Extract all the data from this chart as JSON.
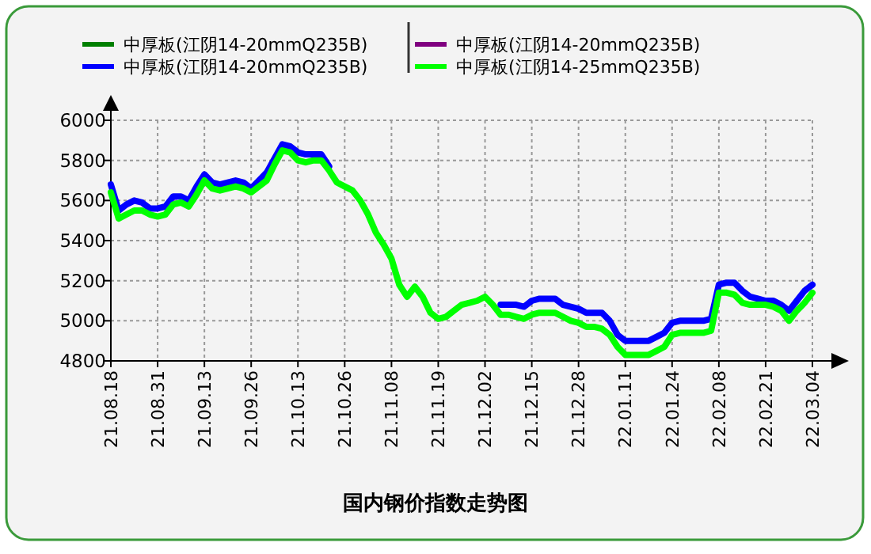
{
  "chart_data": {
    "type": "line",
    "title": "国内钢价指数走势图",
    "categories": [
      "21.08.18",
      null,
      null,
      null,
      null,
      null,
      "21.08.31",
      null,
      null,
      null,
      null,
      null,
      "21.09.13",
      null,
      null,
      null,
      null,
      null,
      "21.09.26",
      null,
      null,
      null,
      null,
      null,
      "21.10.13",
      null,
      null,
      null,
      null,
      null,
      "21.10.26",
      null,
      null,
      null,
      null,
      null,
      "21.11.08",
      null,
      null,
      null,
      null,
      null,
      "21.11.19",
      null,
      null,
      null,
      null,
      null,
      "21.12.02",
      null,
      null,
      null,
      null,
      null,
      "21.12.15",
      null,
      null,
      null,
      null,
      null,
      "21.12.28",
      null,
      null,
      null,
      null,
      null,
      "22.01.11",
      null,
      null,
      null,
      null,
      null,
      "22.01.24",
      null,
      null,
      null,
      null,
      null,
      "22.02.08",
      null,
      null,
      null,
      null,
      null,
      "22.02.21",
      null,
      null,
      null,
      null,
      null,
      "22.03.04"
    ],
    "series": [
      {
        "name": "中厚板(江阴14-20mmQ235B)",
        "color": "#007f00",
        "values": [
          null,
          null,
          null,
          null,
          null,
          null,
          null,
          null,
          null,
          null,
          null,
          null,
          null,
          null,
          null,
          null,
          null,
          null,
          null,
          null,
          null,
          null,
          null,
          null,
          null,
          null,
          null,
          null,
          null,
          null,
          null,
          null,
          null,
          null,
          null,
          null,
          null,
          null,
          null,
          null,
          null,
          null,
          null,
          null,
          null,
          null,
          null,
          null,
          null,
          null,
          null,
          null,
          null,
          null,
          null,
          null,
          null,
          null,
          null,
          null,
          null,
          null,
          null,
          null,
          null,
          null,
          null,
          null,
          null,
          null,
          null,
          null,
          null,
          null,
          null,
          null,
          null,
          null,
          null,
          null,
          null,
          null,
          null,
          null,
          null,
          null,
          null,
          null,
          null,
          null,
          null
        ]
      },
      {
        "name": "中厚板(江阴14-20mmQ235B)",
        "color": "#800080",
        "values": [
          null,
          null,
          null,
          null,
          null,
          null,
          null,
          null,
          null,
          null,
          null,
          null,
          null,
          null,
          null,
          null,
          null,
          null,
          null,
          null,
          null,
          null,
          null,
          null,
          null,
          null,
          null,
          null,
          null,
          null,
          null,
          null,
          null,
          null,
          null,
          null,
          null,
          null,
          null,
          null,
          null,
          null,
          null,
          null,
          null,
          null,
          null,
          null,
          null,
          null,
          null,
          null,
          null,
          null,
          null,
          null,
          null,
          null,
          null,
          null,
          null,
          null,
          null,
          null,
          null,
          null,
          null,
          null,
          null,
          null,
          null,
          null,
          null,
          null,
          null,
          null,
          null,
          null,
          null,
          null,
          null,
          null,
          null,
          null,
          null,
          null,
          null,
          null,
          null,
          null,
          null
        ]
      },
      {
        "name": "中厚板(江阴14-20mmQ235B)",
        "color": "#0000ff",
        "values": [
          5680,
          5550,
          5580,
          5600,
          5590,
          5560,
          5560,
          5570,
          5620,
          5620,
          5600,
          5670,
          5730,
          5690,
          5680,
          5690,
          5700,
          5690,
          5660,
          5700,
          5740,
          5810,
          5880,
          5870,
          5840,
          5830,
          5830,
          5830,
          5770,
          null,
          null,
          null,
          null,
          null,
          null,
          null,
          null,
          null,
          null,
          null,
          null,
          null,
          null,
          null,
          null,
          null,
          null,
          null,
          null,
          null,
          5080,
          5080,
          5080,
          5070,
          5100,
          5110,
          5110,
          5110,
          5080,
          5070,
          5060,
          5040,
          5040,
          5040,
          5000,
          4930,
          4900,
          4900,
          4900,
          4900,
          4920,
          4940,
          4990,
          5000,
          5000,
          5000,
          5000,
          5010,
          5180,
          5190,
          5190,
          5150,
          5120,
          5110,
          5100,
          5100,
          5080,
          5050,
          5100,
          5150,
          5180
        ]
      },
      {
        "name": "中厚板(江阴14-25mmQ235B)",
        "color": "#00ff00",
        "values": [
          5640,
          5510,
          5530,
          5550,
          5550,
          5530,
          5520,
          5530,
          5580,
          5590,
          5570,
          5630,
          5700,
          5660,
          5650,
          5660,
          5670,
          5660,
          5640,
          5670,
          5700,
          5780,
          5850,
          5840,
          5800,
          5790,
          5800,
          5800,
          5750,
          5690,
          5670,
          5650,
          5600,
          5530,
          5440,
          5380,
          5310,
          5180,
          5120,
          5170,
          5120,
          5040,
          5010,
          5020,
          5050,
          5080,
          5090,
          5100,
          5120,
          5080,
          5030,
          5030,
          5020,
          5010,
          5030,
          5040,
          5040,
          5040,
          5020,
          5000,
          4990,
          4970,
          4970,
          4960,
          4930,
          4870,
          4830,
          4830,
          4830,
          4830,
          4850,
          4870,
          4930,
          4940,
          4940,
          4940,
          4940,
          4950,
          5140,
          5140,
          5130,
          5090,
          5080,
          5080,
          5080,
          5070,
          5050,
          5000,
          5050,
          5090,
          5140
        ]
      }
    ],
    "ylim": [
      4800,
      6000
    ],
    "yticks": [
      4800,
      5000,
      5200,
      5400,
      5600,
      5800,
      6000
    ],
    "grid": true,
    "legend": "top",
    "marker": "none",
    "line_style": "solid"
  }
}
